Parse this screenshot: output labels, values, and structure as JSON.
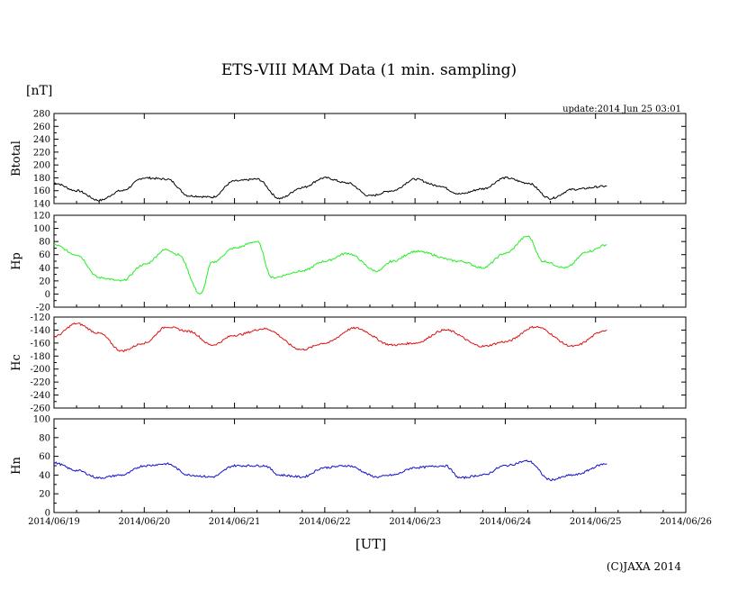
{
  "title": "ETS-VIII MAM Data (1 min. sampling)",
  "unit_label": "[nT]",
  "update_text": "update:2014 Jun 25 03:01",
  "x_axis_label": "[UT]",
  "copyright": "(C)JAXA 2014",
  "chart_data": [
    {
      "type": "line",
      "ylabel": "Btotal",
      "color": "#000000",
      "ylim": [
        140,
        280
      ],
      "yticks": [
        140,
        160,
        180,
        200,
        220,
        240,
        260,
        280
      ],
      "xlim": [
        "2014-06-19T00:00",
        "2014-06-26T00:00"
      ],
      "x_tick_labels": [
        "2014/06/19",
        "2014/06/20",
        "2014/06/21",
        "2014/06/22",
        "2014/06/23",
        "2014/06/24",
        "2014/06/25",
        "2014/06/26"
      ],
      "series": [
        {
          "x": [
            "2014-06-19T00:00",
            "2014-06-19T06:00",
            "2014-06-19T12:00",
            "2014-06-19T18:00",
            "2014-06-20T00:00",
            "2014-06-20T06:00",
            "2014-06-20T12:00",
            "2014-06-20T18:00",
            "2014-06-21T00:00",
            "2014-06-21T06:00",
            "2014-06-21T12:00",
            "2014-06-21T18:00",
            "2014-06-22T00:00",
            "2014-06-22T06:00",
            "2014-06-22T12:00",
            "2014-06-22T18:00",
            "2014-06-23T00:00",
            "2014-06-23T06:00",
            "2014-06-23T12:00",
            "2014-06-23T18:00",
            "2014-06-24T00:00",
            "2014-06-24T06:00",
            "2014-06-24T12:00",
            "2014-06-24T18:00",
            "2014-06-25T03:00"
          ],
          "values": [
            172,
            160,
            145,
            160,
            180,
            178,
            152,
            150,
            175,
            178,
            148,
            165,
            180,
            172,
            152,
            160,
            178,
            168,
            155,
            163,
            180,
            172,
            148,
            162,
            167
          ]
        }
      ]
    },
    {
      "type": "line",
      "ylabel": "Hp",
      "color": "#22ee22",
      "ylim": [
        -20,
        120
      ],
      "yticks": [
        -20,
        0,
        20,
        40,
        60,
        80,
        100,
        120
      ],
      "xlim": [
        "2014-06-19T00:00",
        "2014-06-26T00:00"
      ],
      "x_tick_labels": [
        "2014/06/19",
        "2014/06/20",
        "2014/06/21",
        "2014/06/22",
        "2014/06/23",
        "2014/06/24",
        "2014/06/25",
        "2014/06/26"
      ],
      "series": [
        {
          "x": [
            "2014-06-19T00:00",
            "2014-06-19T06:00",
            "2014-06-19T12:00",
            "2014-06-19T18:00",
            "2014-06-20T00:00",
            "2014-06-20T06:00",
            "2014-06-20T09:00",
            "2014-06-20T15:00",
            "2014-06-20T18:00",
            "2014-06-21T00:00",
            "2014-06-21T06:00",
            "2014-06-21T10:00",
            "2014-06-21T18:00",
            "2014-06-22T00:00",
            "2014-06-22T06:00",
            "2014-06-22T14:00",
            "2014-06-22T18:00",
            "2014-06-23T00:00",
            "2014-06-23T12:00",
            "2014-06-23T18:00",
            "2014-06-24T00:00",
            "2014-06-24T06:00",
            "2014-06-24T10:00",
            "2014-06-24T16:00",
            "2014-06-24T22:00",
            "2014-06-25T03:00"
          ],
          "values": [
            75,
            60,
            25,
            20,
            45,
            68,
            60,
            0,
            48,
            70,
            80,
            25,
            35,
            50,
            62,
            35,
            50,
            65,
            50,
            40,
            62,
            88,
            50,
            40,
            65,
            75
          ]
        }
      ]
    },
    {
      "type": "line",
      "ylabel": "Hc",
      "color": "#dd1111",
      "ylim": [
        -260,
        -120
      ],
      "yticks": [
        -260,
        -240,
        -220,
        -200,
        -180,
        -160,
        -140,
        -120
      ],
      "xlim": [
        "2014-06-19T00:00",
        "2014-06-26T00:00"
      ],
      "x_tick_labels": [
        "2014/06/19",
        "2014/06/20",
        "2014/06/21",
        "2014/06/22",
        "2014/06/23",
        "2014/06/24",
        "2014/06/25",
        "2014/06/26"
      ],
      "series": [
        {
          "x": [
            "2014-06-19T00:00",
            "2014-06-19T06:00",
            "2014-06-19T12:00",
            "2014-06-19T18:00",
            "2014-06-20T00:00",
            "2014-06-20T06:00",
            "2014-06-20T12:00",
            "2014-06-20T18:00",
            "2014-06-21T00:00",
            "2014-06-21T08:00",
            "2014-06-21T18:00",
            "2014-06-22T00:00",
            "2014-06-22T08:00",
            "2014-06-22T18:00",
            "2014-06-23T00:00",
            "2014-06-23T08:00",
            "2014-06-23T18:00",
            "2014-06-24T00:00",
            "2014-06-24T08:00",
            "2014-06-24T18:00",
            "2014-06-25T03:00"
          ],
          "values": [
            -150,
            -130,
            -145,
            -172,
            -160,
            -135,
            -142,
            -163,
            -148,
            -138,
            -170,
            -160,
            -137,
            -163,
            -160,
            -140,
            -165,
            -158,
            -135,
            -165,
            -140
          ]
        }
      ]
    },
    {
      "type": "line",
      "ylabel": "Hn",
      "color": "#1111cc",
      "ylim": [
        0,
        100
      ],
      "yticks": [
        0,
        20,
        40,
        60,
        80,
        100
      ],
      "xlim": [
        "2014-06-19T00:00",
        "2014-06-26T00:00"
      ],
      "x_tick_labels": [
        "2014/06/19",
        "2014/06/20",
        "2014/06/21",
        "2014/06/22",
        "2014/06/23",
        "2014/06/24",
        "2014/06/25",
        "2014/06/26"
      ],
      "series": [
        {
          "x": [
            "2014-06-19T00:00",
            "2014-06-19T06:00",
            "2014-06-19T12:00",
            "2014-06-19T18:00",
            "2014-06-20T00:00",
            "2014-06-20T06:00",
            "2014-06-20T12:00",
            "2014-06-20T18:00",
            "2014-06-21T00:00",
            "2014-06-21T08:00",
            "2014-06-21T12:00",
            "2014-06-21T18:00",
            "2014-06-22T00:00",
            "2014-06-22T06:00",
            "2014-06-22T14:00",
            "2014-06-22T18:00",
            "2014-06-23T00:00",
            "2014-06-23T08:00",
            "2014-06-23T12:00",
            "2014-06-23T18:00",
            "2014-06-24T00:00",
            "2014-06-24T06:00",
            "2014-06-24T12:00",
            "2014-06-24T18:00",
            "2014-06-25T03:00"
          ],
          "values": [
            53,
            45,
            37,
            40,
            50,
            52,
            40,
            38,
            50,
            50,
            40,
            38,
            48,
            50,
            38,
            40,
            48,
            50,
            37,
            40,
            50,
            55,
            35,
            40,
            52
          ]
        }
      ]
    }
  ]
}
